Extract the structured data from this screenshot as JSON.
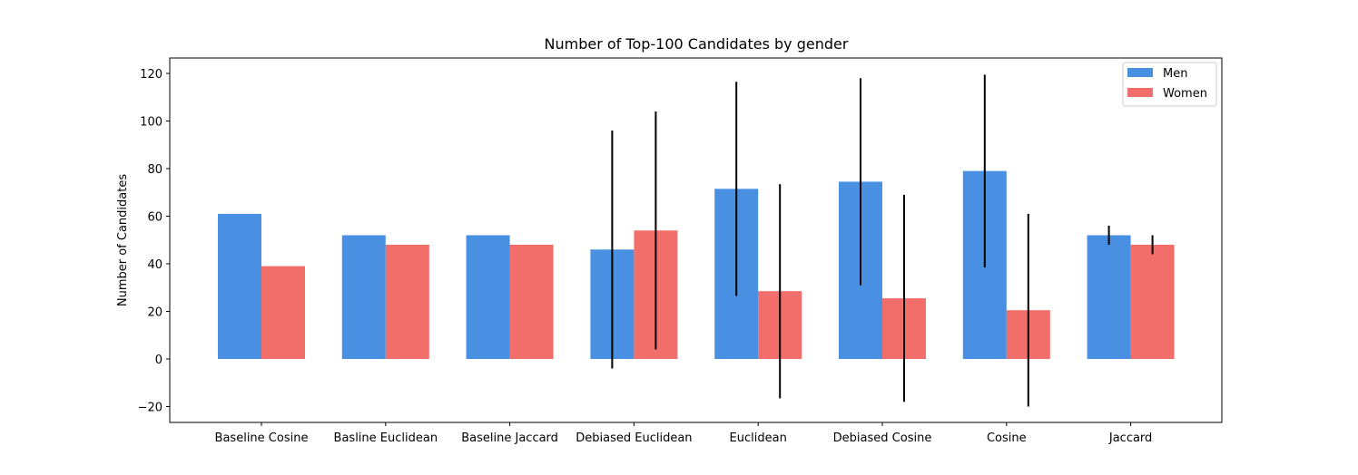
{
  "chart_data": {
    "type": "bar",
    "title": "Number of Top-100 Candidates by gender",
    "xlabel": "",
    "ylabel": "Number of Candidates",
    "ylim": [
      -26,
      127
    ],
    "yticks": [
      -20,
      0,
      20,
      40,
      60,
      80,
      100,
      120
    ],
    "ytick_labels": [
      "−20",
      "0",
      "20",
      "40",
      "60",
      "80",
      "100",
      "120"
    ],
    "categories": [
      "Baseline Cosine",
      "Basline Euclidean",
      "Baseline Jaccard",
      "Debiased Euclidean",
      "Euclidean",
      "Debiased Cosine",
      "Cosine",
      "Jaccard"
    ],
    "series": [
      {
        "name": "Men",
        "color": "#4a90e2",
        "values": [
          61,
          52,
          52,
          46,
          71.5,
          74.5,
          79,
          52
        ],
        "error": [
          null,
          null,
          null,
          50,
          45,
          43.5,
          40.5,
          4
        ]
      },
      {
        "name": "Women",
        "color": "#f16e6a",
        "values": [
          39,
          48,
          48,
          54,
          28.5,
          25.5,
          20.5,
          48
        ],
        "error": [
          null,
          null,
          null,
          50,
          45,
          43.5,
          40.5,
          4
        ]
      }
    ],
    "legend": {
      "position": "top-right"
    },
    "grid": false
  }
}
